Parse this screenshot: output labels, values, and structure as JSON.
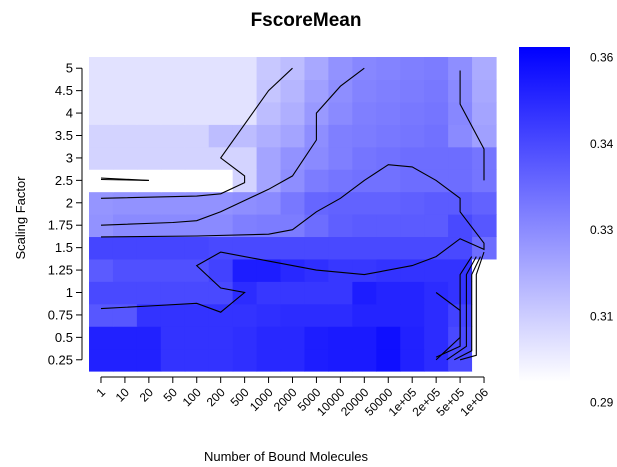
{
  "chart_data": {
    "type": "heatmap",
    "title": "FscoreMean",
    "xlabel": "Number of Bound Molecules",
    "ylabel": "Scaling Factor",
    "x_categories": [
      "1",
      "10",
      "20",
      "50",
      "100",
      "200",
      "500",
      "1000",
      "2000",
      "5000",
      "10000",
      "20000",
      "50000",
      "1e+05",
      "2e+05",
      "5e+05",
      "1e+06"
    ],
    "y_categories": [
      "0.25",
      "0.5",
      "0.75",
      "1",
      "1.25",
      "1.5",
      "1.75",
      "2",
      "2.5",
      "3",
      "3.5",
      "4",
      "4.5",
      "5"
    ],
    "colorbar": {
      "min": 0.29,
      "max": 0.36,
      "low_color": "#ffffff",
      "high_color": "#0000ff",
      "tick_labels": [
        "0.36",
        "0.34",
        "0.33",
        "0.31",
        "0.29"
      ]
    },
    "values": [
      [
        0.351,
        0.351,
        0.351,
        0.346,
        0.346,
        0.346,
        0.347,
        0.349,
        0.349,
        0.352,
        0.353,
        0.353,
        0.356,
        0.351,
        0.348,
        0.34,
        0.29
      ],
      [
        0.351,
        0.351,
        0.351,
        0.346,
        0.346,
        0.346,
        0.347,
        0.349,
        0.349,
        0.352,
        0.353,
        0.353,
        0.356,
        0.351,
        0.348,
        0.34,
        0.29
      ],
      [
        0.336,
        0.336,
        0.346,
        0.346,
        0.346,
        0.346,
        0.346,
        0.347,
        0.348,
        0.348,
        0.348,
        0.35,
        0.35,
        0.35,
        0.348,
        0.342,
        0.29
      ],
      [
        0.34,
        0.34,
        0.34,
        0.34,
        0.34,
        0.34,
        0.348,
        0.345,
        0.345,
        0.345,
        0.345,
        0.352,
        0.35,
        0.35,
        0.348,
        0.346,
        0.29
      ],
      [
        0.335,
        0.338,
        0.338,
        0.338,
        0.338,
        0.342,
        0.352,
        0.352,
        0.349,
        0.347,
        0.345,
        0.345,
        0.346,
        0.346,
        0.346,
        0.346,
        0.29
      ],
      [
        0.341,
        0.341,
        0.341,
        0.341,
        0.341,
        0.34,
        0.34,
        0.34,
        0.34,
        0.34,
        0.34,
        0.34,
        0.34,
        0.34,
        0.34,
        0.34,
        0.33
      ],
      [
        0.32,
        0.322,
        0.322,
        0.322,
        0.322,
        0.322,
        0.325,
        0.326,
        0.326,
        0.33,
        0.334,
        0.335,
        0.335,
        0.335,
        0.335,
        0.34,
        0.336
      ],
      [
        0.319,
        0.32,
        0.32,
        0.32,
        0.32,
        0.32,
        0.321,
        0.322,
        0.327,
        0.332,
        0.333,
        0.333,
        0.333,
        0.334,
        0.335,
        0.335,
        0.333
      ],
      [
        0.29,
        0.29,
        0.29,
        0.29,
        0.29,
        0.29,
        0.302,
        0.315,
        0.321,
        0.326,
        0.328,
        0.329,
        0.329,
        0.33,
        0.33,
        0.33,
        0.328
      ],
      [
        0.302,
        0.302,
        0.302,
        0.302,
        0.302,
        0.302,
        0.302,
        0.315,
        0.32,
        0.322,
        0.325,
        0.328,
        0.329,
        0.33,
        0.33,
        0.33,
        0.328
      ],
      [
        0.302,
        0.302,
        0.302,
        0.302,
        0.302,
        0.308,
        0.308,
        0.312,
        0.315,
        0.321,
        0.325,
        0.326,
        0.327,
        0.328,
        0.329,
        0.322,
        0.316
      ],
      [
        0.298,
        0.298,
        0.298,
        0.298,
        0.298,
        0.298,
        0.298,
        0.308,
        0.312,
        0.318,
        0.322,
        0.325,
        0.326,
        0.327,
        0.328,
        0.323,
        0.315
      ],
      [
        0.298,
        0.298,
        0.298,
        0.298,
        0.298,
        0.298,
        0.298,
        0.306,
        0.31,
        0.316,
        0.321,
        0.324,
        0.325,
        0.326,
        0.327,
        0.322,
        0.314
      ],
      [
        0.298,
        0.298,
        0.298,
        0.298,
        0.298,
        0.298,
        0.298,
        0.305,
        0.308,
        0.314,
        0.32,
        0.323,
        0.324,
        0.325,
        0.326,
        0.321,
        0.313
      ]
    ],
    "contours": [
      [
        [
          1,
          2.52
        ],
        [
          20,
          2.5
        ]
      ],
      [
        [
          1,
          2.55
        ],
        [
          20,
          2.5
        ]
      ],
      [
        [
          1,
          2.1
        ],
        [
          100,
          2.15
        ],
        [
          200,
          2.2
        ],
        [
          500,
          2.45
        ],
        [
          500,
          2.6
        ],
        [
          200,
          3.0
        ],
        [
          1000,
          4.5
        ],
        [
          2000,
          5.0
        ]
      ],
      [
        [
          1,
          1.75
        ],
        [
          50,
          1.78
        ],
        [
          100,
          1.8
        ],
        [
          200,
          1.9
        ],
        [
          500,
          2.05
        ],
        [
          1000,
          2.3
        ],
        [
          2000,
          2.6
        ],
        [
          5000,
          3.4
        ],
        [
          5000,
          4.0
        ],
        [
          10000,
          4.6
        ],
        [
          20000,
          5.0
        ]
      ],
      [
        [
          1,
          1.62
        ],
        [
          100,
          1.63
        ],
        [
          1000,
          1.65
        ],
        [
          2000,
          1.7
        ],
        [
          5000,
          1.9
        ],
        [
          10000,
          2.1
        ],
        [
          20000,
          2.5
        ],
        [
          50000,
          2.85
        ],
        [
          100000,
          2.8
        ],
        [
          200000,
          2.5
        ],
        [
          500000,
          2.1
        ],
        [
          500000,
          1.9
        ],
        [
          1000000,
          1.55
        ],
        [
          1000000,
          1.48
        ],
        [
          500000,
          1.6
        ],
        [
          200000,
          1.4
        ],
        [
          100000,
          1.3
        ],
        [
          20000,
          1.2
        ],
        [
          5000,
          1.25
        ],
        [
          1000,
          1.35
        ],
        [
          200,
          1.45
        ],
        [
          100,
          1.3
        ],
        [
          200,
          1.05
        ],
        [
          500,
          1.0
        ],
        [
          200,
          0.78
        ],
        [
          100,
          0.88
        ],
        [
          20,
          0.85
        ],
        [
          1,
          0.82
        ]
      ],
      [
        [
          200000,
          1.0
        ],
        [
          500000,
          0.8
        ],
        [
          500000,
          0.5
        ],
        [
          200000,
          0.25
        ]
      ],
      [
        [
          500000,
          4.95
        ],
        [
          500000,
          4.2
        ],
        [
          1000000,
          3.2
        ],
        [
          1000000,
          2.5
        ]
      ],
      [
        [
          700000,
          1.4
        ],
        [
          500000,
          1.2
        ],
        [
          500000,
          0.4
        ],
        [
          200000,
          0.28
        ]
      ],
      [
        [
          800000,
          1.4
        ],
        [
          600000,
          1.2
        ],
        [
          600000,
          0.4
        ],
        [
          300000,
          0.25
        ]
      ],
      [
        [
          900000,
          1.4
        ],
        [
          700000,
          1.2
        ],
        [
          700000,
          0.35
        ],
        [
          400000,
          0.22
        ]
      ],
      [
        [
          1000000,
          1.45
        ],
        [
          800000,
          1.2
        ],
        [
          800000,
          0.3
        ],
        [
          500000,
          0.2
        ]
      ]
    ]
  }
}
